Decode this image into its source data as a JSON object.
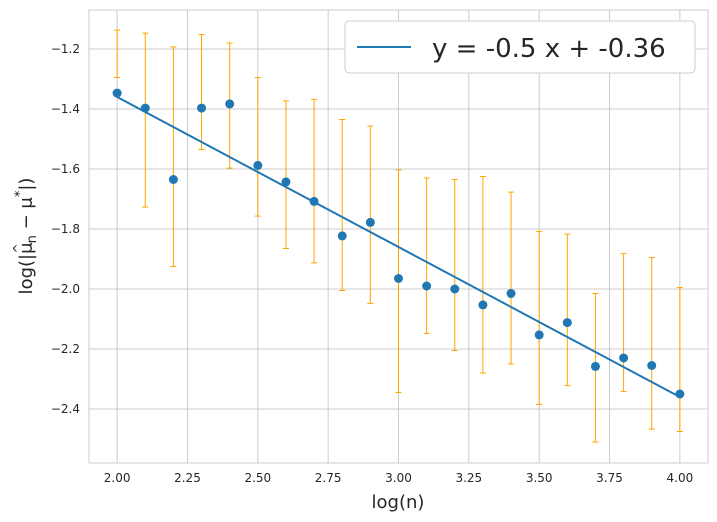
{
  "chart_data": {
    "type": "scatter",
    "title": "",
    "xlabel": "log(n)",
    "ylabel_parts": {
      "prefix": "log(|",
      "mu": "μ",
      "hat": "^",
      "sub": "n",
      "minus": " − ",
      "star": "*",
      "suffix": "|)"
    },
    "xlim": [
      1.9,
      4.1
    ],
    "ylim": [
      -2.58,
      -1.07
    ],
    "x_ticks": [
      2.0,
      2.25,
      2.5,
      2.75,
      3.0,
      3.25,
      3.5,
      3.75,
      4.0
    ],
    "x_tick_labels": [
      "2.00",
      "2.25",
      "2.50",
      "2.75",
      "3.00",
      "3.25",
      "3.50",
      "3.75",
      "4.00"
    ],
    "y_ticks": [
      -1.2,
      -1.4,
      -1.6,
      -1.8,
      -2.0,
      -2.2,
      -2.4
    ],
    "y_tick_labels": [
      "−1.2",
      "−1.4",
      "−1.6",
      "−1.8",
      "−2.0",
      "−2.2",
      "−2.4"
    ],
    "grid": true,
    "legend_position": "top-right",
    "fit_line": {
      "label": "y = -0.5 x + -0.36",
      "slope": -0.5,
      "intercept": -0.36,
      "x_range": [
        2.0,
        4.0
      ],
      "color": "#1f77b4"
    },
    "points": {
      "color": "#1f77b4",
      "errorbar_color": "#ffa500",
      "x": [
        2.0,
        2.1,
        2.2,
        2.3,
        2.4,
        2.5,
        2.6,
        2.7,
        2.8,
        2.9,
        3.0,
        3.1,
        3.2,
        3.3,
        3.4,
        3.5,
        3.6,
        3.7,
        3.8,
        3.9,
        4.0
      ],
      "y": [
        -1.347,
        -1.397,
        -1.635,
        -1.397,
        -1.383,
        -1.588,
        -1.643,
        -1.708,
        -1.823,
        -1.778,
        -1.965,
        -1.99,
        -2.0,
        -2.053,
        -2.015,
        -2.153,
        -2.112,
        -2.258,
        -2.23,
        -2.255,
        -2.35
      ],
      "err_low": [
        -1.295,
        -1.727,
        -1.925,
        -1.535,
        -1.597,
        -1.757,
        -1.865,
        -1.913,
        -2.005,
        -2.048,
        -2.345,
        -2.148,
        -2.205,
        -2.28,
        -2.25,
        -2.385,
        -2.322,
        -2.51,
        -2.342,
        -2.467,
        -2.475
      ],
      "err_high": [
        -1.137,
        -1.147,
        -1.193,
        -1.152,
        -1.18,
        -1.295,
        -1.373,
        -1.368,
        -1.435,
        -1.457,
        -1.603,
        -1.63,
        -1.635,
        -1.625,
        -1.677,
        -1.808,
        -1.817,
        -2.015,
        -1.882,
        -1.895,
        -1.995
      ]
    }
  }
}
